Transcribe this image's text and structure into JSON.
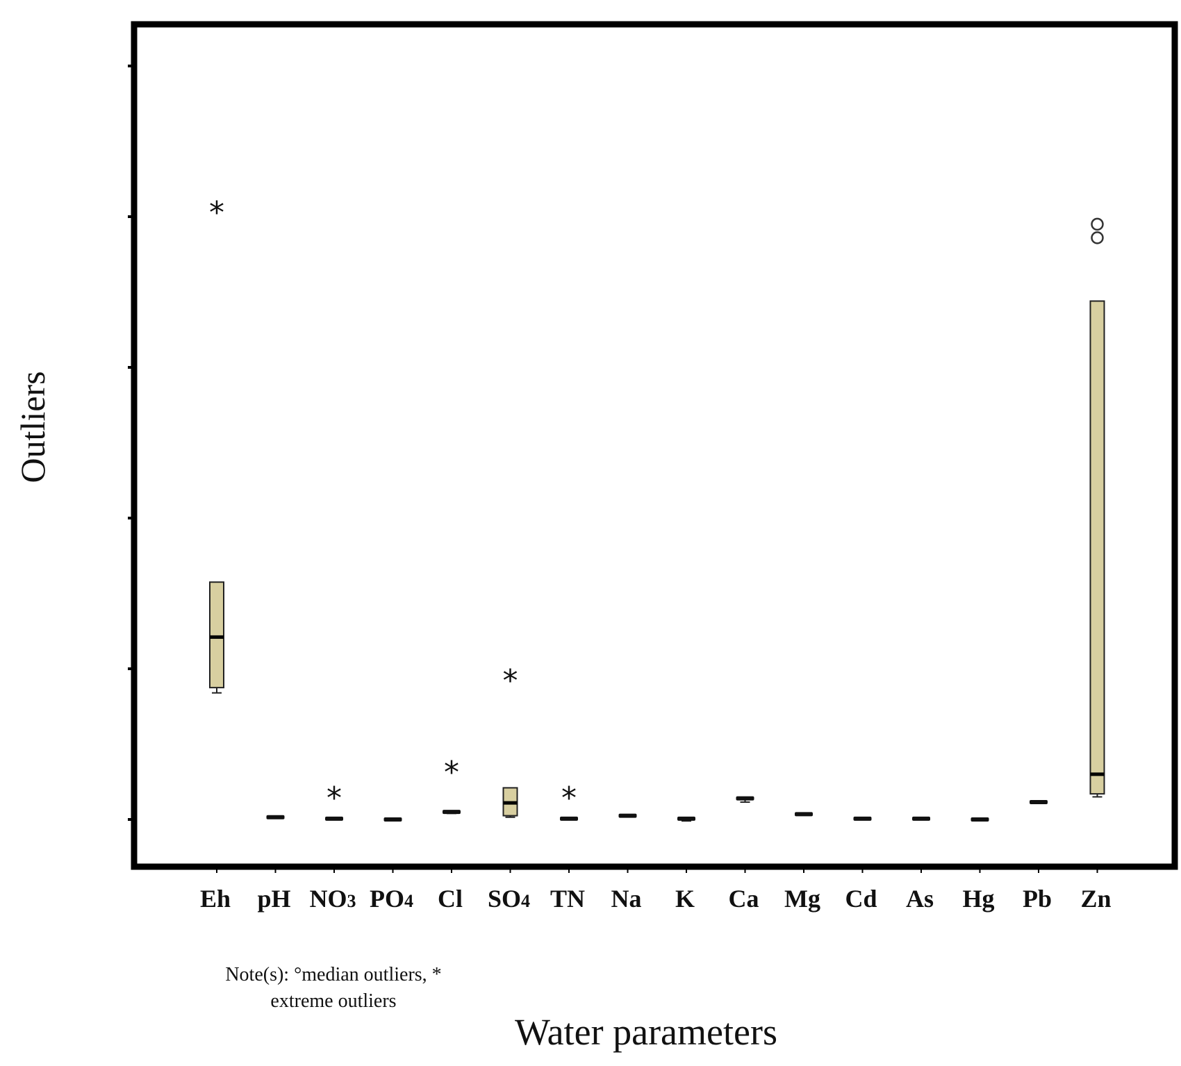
{
  "chart_data": {
    "type": "box",
    "xlabel": "Water parameters",
    "ylabel": "Outliers",
    "ylim": [
      0,
      100
    ],
    "categories": [
      {
        "label": "Eh",
        "q1": 17.5,
        "median": 24.2,
        "q3": 31.5,
        "whisker_low": 16.8,
        "whisker_high": 31.5,
        "extreme_outliers": [
          81.2
        ],
        "median_outliers": []
      },
      {
        "label": "pH",
        "q1": 0.2,
        "median": 0.3,
        "q3": 0.4,
        "whisker_low": 0.2,
        "whisker_high": 0.4,
        "extreme_outliers": [],
        "median_outliers": []
      },
      {
        "label": "NO3",
        "q1": 0.0,
        "median": 0.1,
        "q3": 0.2,
        "whisker_low": 0.0,
        "whisker_high": 0.2,
        "extreme_outliers": [
          3.5
        ],
        "median_outliers": []
      },
      {
        "label": "PO4",
        "q1": -0.1,
        "median": 0.0,
        "q3": 0.1,
        "whisker_low": -0.1,
        "whisker_high": 0.1,
        "extreme_outliers": [],
        "median_outliers": []
      },
      {
        "label": "Cl",
        "q1": 0.8,
        "median": 1.0,
        "q3": 1.2,
        "whisker_low": 0.8,
        "whisker_high": 1.2,
        "extreme_outliers": [
          6.9
        ],
        "median_outliers": []
      },
      {
        "label": "SO4",
        "q1": 0.5,
        "median": 2.2,
        "q3": 4.2,
        "whisker_low": 0.3,
        "whisker_high": 4.2,
        "extreme_outliers": [
          19.1
        ],
        "median_outliers": []
      },
      {
        "label": "TN",
        "q1": 0.0,
        "median": 0.1,
        "q3": 0.2,
        "whisker_low": 0.0,
        "whisker_high": 0.2,
        "extreme_outliers": [
          3.5
        ],
        "median_outliers": []
      },
      {
        "label": "Na",
        "q1": 0.4,
        "median": 0.5,
        "q3": 0.6,
        "whisker_low": 0.4,
        "whisker_high": 0.6,
        "extreme_outliers": [],
        "median_outliers": []
      },
      {
        "label": "K",
        "q1": 0.0,
        "median": 0.1,
        "q3": 0.2,
        "whisker_low": -0.2,
        "whisker_high": 0.3,
        "extreme_outliers": [],
        "median_outliers": []
      },
      {
        "label": "Ca",
        "q1": 2.7,
        "median": 2.8,
        "q3": 2.9,
        "whisker_low": 2.3,
        "whisker_high": 3.0,
        "extreme_outliers": [],
        "median_outliers": []
      },
      {
        "label": "Mg",
        "q1": 0.6,
        "median": 0.7,
        "q3": 0.8,
        "whisker_low": 0.6,
        "whisker_high": 0.8,
        "extreme_outliers": [],
        "median_outliers": []
      },
      {
        "label": "Cd",
        "q1": 0.0,
        "median": 0.1,
        "q3": 0.2,
        "whisker_low": 0.0,
        "whisker_high": 0.2,
        "extreme_outliers": [],
        "median_outliers": []
      },
      {
        "label": "As",
        "q1": 0.0,
        "median": 0.1,
        "q3": 0.2,
        "whisker_low": 0.0,
        "whisker_high": 0.2,
        "extreme_outliers": [],
        "median_outliers": []
      },
      {
        "label": "Hg",
        "q1": -0.1,
        "median": 0.0,
        "q3": 0.1,
        "whisker_low": -0.1,
        "whisker_high": 0.1,
        "extreme_outliers": [],
        "median_outliers": []
      },
      {
        "label": "Pb",
        "q1": 2.2,
        "median": 2.3,
        "q3": 2.4,
        "whisker_low": 2.2,
        "whisker_high": 2.4,
        "extreme_outliers": [],
        "median_outliers": []
      },
      {
        "label": "Zn",
        "q1": 3.4,
        "median": 6.0,
        "q3": 68.8,
        "whisker_low": 3.0,
        "whisker_high": 68.8,
        "extreme_outliers": [],
        "median_outliers": [
          79.0,
          77.2
        ]
      }
    ],
    "note_line1": "Note(s): °median outliers, *",
    "note_line2": "extreme outliers",
    "box_fill": "#d8cfa0",
    "box_stroke": "#222222",
    "extreme_marker": "*",
    "grid": false,
    "legend": "none"
  }
}
